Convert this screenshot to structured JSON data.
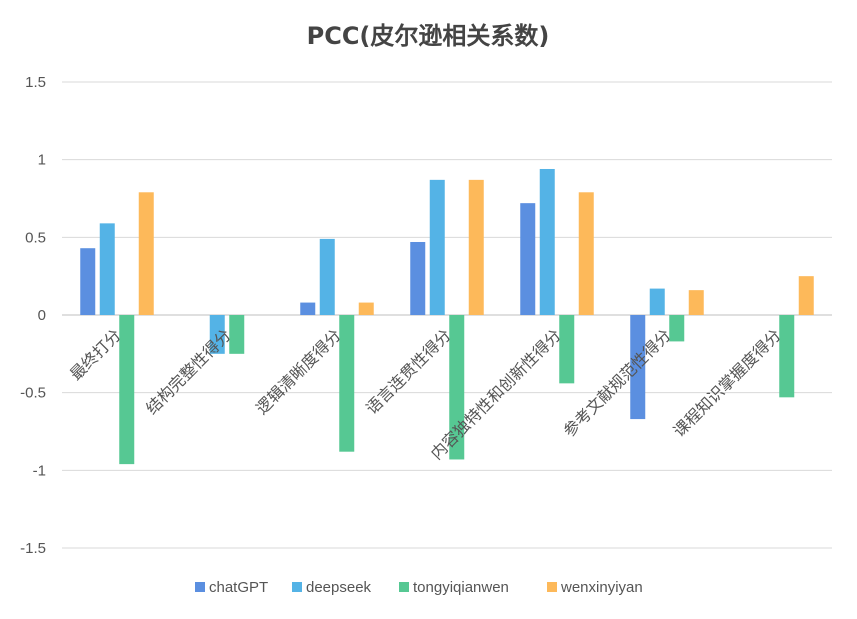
{
  "chart_data": {
    "type": "bar",
    "title": "PCC(皮尔逊相关系数)",
    "categories": [
      "最终打分",
      "结构完整性得分",
      "逻辑清晰度得分",
      "语言连贯性得分",
      "内容独特性和创新性得分",
      "参考文献规范性得分",
      "课程知识掌握度得分"
    ],
    "series": [
      {
        "name": "chatGPT",
        "color": "#5b8fe0",
        "values": [
          0.43,
          null,
          0.08,
          0.47,
          0.72,
          -0.67,
          null
        ]
      },
      {
        "name": "deepseek",
        "color": "#54b3e6",
        "values": [
          0.59,
          -0.25,
          0.49,
          0.87,
          0.94,
          0.17,
          null
        ]
      },
      {
        "name": "tongyiqianwen",
        "color": "#56c893",
        "values": [
          -0.96,
          -0.25,
          -0.88,
          -0.93,
          -0.44,
          -0.17,
          -0.53
        ]
      },
      {
        "name": "wenxinyiyan",
        "color": "#fdb95a",
        "values": [
          0.79,
          null,
          0.08,
          0.87,
          0.79,
          0.16,
          0.25
        ]
      }
    ],
    "ylim": [
      -1.5,
      1.5
    ],
    "yticks": [
      "-1.5",
      "-1",
      "-0.5",
      "0",
      "0.5",
      "1",
      "1.5"
    ],
    "grid": true,
    "legend": "bottom"
  }
}
